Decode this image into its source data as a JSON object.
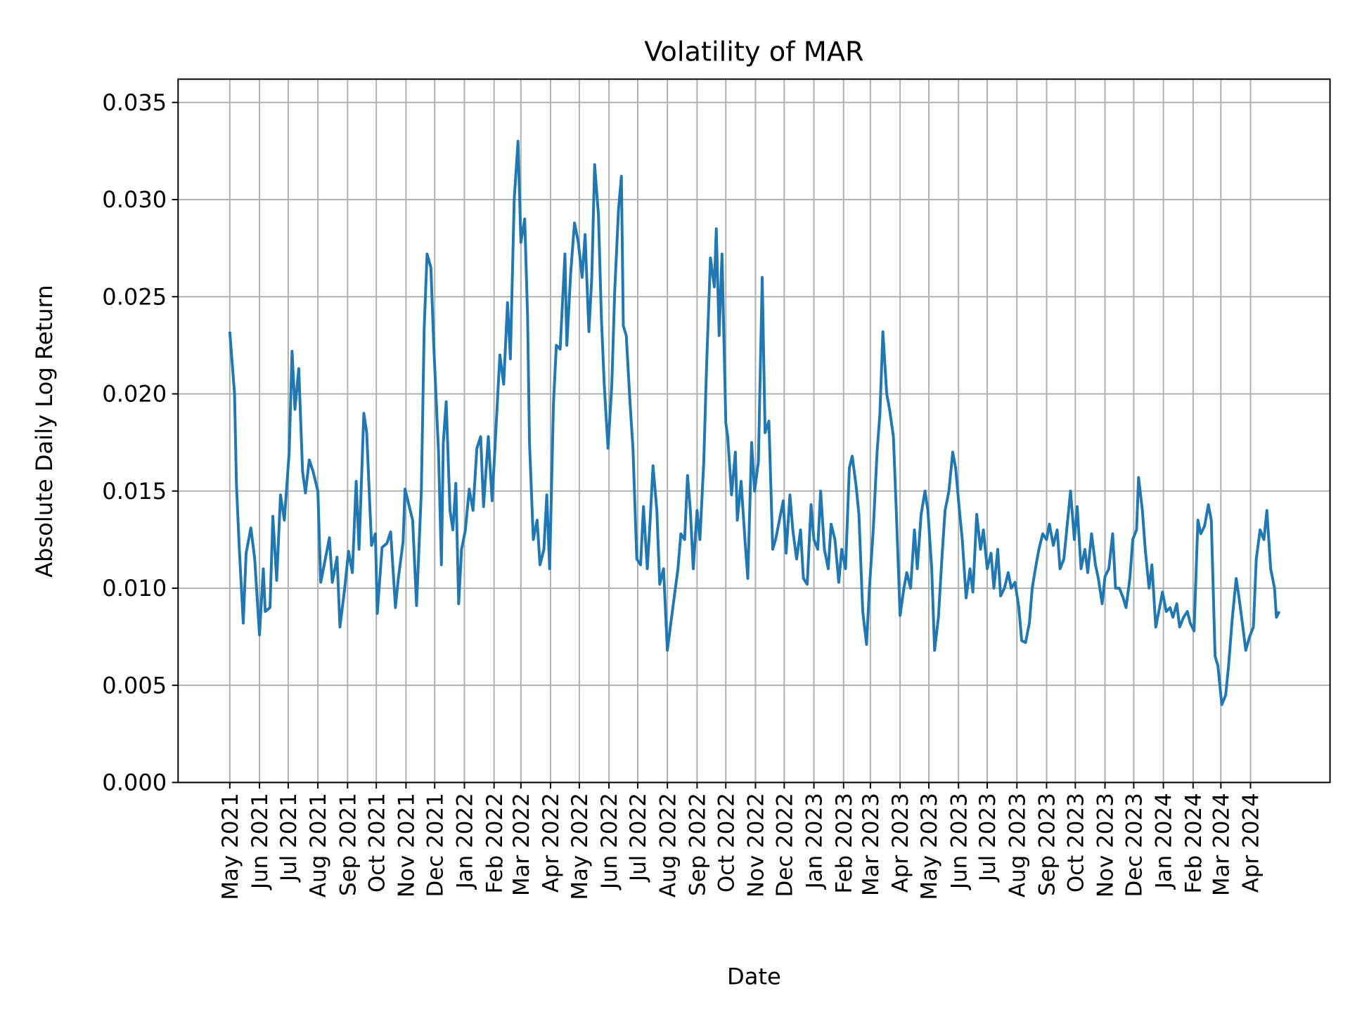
{
  "chart_data": {
    "type": "line",
    "title": "Volatility of MAR",
    "xlabel": "Date",
    "ylabel": "Absolute Daily Log Return",
    "xlim": [
      "2021-03-08",
      "2024-06-23"
    ],
    "ylim": [
      0,
      0.0362
    ],
    "grid": true,
    "line_color": "#1f77b4",
    "grid_color": "#b0b0b0",
    "yticks": [
      "0.000",
      "0.005",
      "0.010",
      "0.015",
      "0.020",
      "0.025",
      "0.030",
      "0.035"
    ],
    "ytick_values": [
      0,
      0.005,
      0.01,
      0.015,
      0.02,
      0.025,
      0.03,
      0.035
    ],
    "xticks": [
      "May 2021",
      "Jun 2021",
      "Jul 2021",
      "Aug 2021",
      "Sep 2021",
      "Oct 2021",
      "Nov 2021",
      "Dec 2021",
      "Jan 2022",
      "Feb 2022",
      "Mar 2022",
      "Apr 2022",
      "May 2022",
      "Jun 2022",
      "Jul 2022",
      "Aug 2022",
      "Sep 2022",
      "Oct 2022",
      "Nov 2022",
      "Dec 2022",
      "Jan 2023",
      "Feb 2023",
      "Mar 2023",
      "Apr 2023",
      "May 2023",
      "Jun 2023",
      "Jul 2023",
      "Aug 2023",
      "Sep 2023",
      "Oct 2023",
      "Nov 2023",
      "Dec 2023",
      "Jan 2024",
      "Feb 2024",
      "Mar 2024",
      "Apr 2024"
    ],
    "xtick_dates": [
      "2021-05-01",
      "2021-06-01",
      "2021-07-01",
      "2021-08-01",
      "2021-09-01",
      "2021-10-01",
      "2021-11-01",
      "2021-12-01",
      "2022-01-01",
      "2022-02-01",
      "2022-03-01",
      "2022-04-01",
      "2022-05-01",
      "2022-06-01",
      "2022-07-01",
      "2022-08-01",
      "2022-09-01",
      "2022-10-01",
      "2022-11-01",
      "2022-12-01",
      "2023-01-01",
      "2023-02-01",
      "2023-03-01",
      "2023-04-01",
      "2023-05-01",
      "2023-06-01",
      "2023-07-01",
      "2023-08-01",
      "2023-09-01",
      "2023-10-01",
      "2023-11-01",
      "2023-12-01",
      "2024-01-01",
      "2024-02-01",
      "2024-03-01",
      "2024-04-01"
    ],
    "series": [
      {
        "x": [
          "2021-05-01",
          "2021-05-06",
          "2021-05-08",
          "2021-05-11",
          "2021-05-15",
          "2021-05-18",
          "2021-05-23",
          "2021-05-27",
          "2021-06-01",
          "2021-06-05",
          "2021-06-07",
          "2021-06-12",
          "2021-06-15",
          "2021-06-19",
          "2021-06-23",
          "2021-06-27",
          "2021-07-02",
          "2021-07-05",
          "2021-07-08",
          "2021-07-12",
          "2021-07-16",
          "2021-07-19",
          "2021-07-23",
          "2021-07-27",
          "2021-08-01",
          "2021-08-04",
          "2021-08-08",
          "2021-08-13",
          "2021-08-16",
          "2021-08-21",
          "2021-08-24",
          "2021-08-29",
          "2021-09-02",
          "2021-09-06",
          "2021-09-10",
          "2021-09-13",
          "2021-09-18",
          "2021-09-21",
          "2021-09-26",
          "2021-09-30",
          "2021-10-02",
          "2021-10-07",
          "2021-10-12",
          "2021-10-16",
          "2021-10-21",
          "2021-10-24",
          "2021-10-29",
          "2021-10-31",
          "2021-11-04",
          "2021-11-08",
          "2021-11-12",
          "2021-11-17",
          "2021-11-20",
          "2021-11-23",
          "2021-11-27",
          "2021-11-30",
          "2021-12-05",
          "2021-12-08",
          "2021-12-10",
          "2021-12-13",
          "2021-12-17",
          "2021-12-20",
          "2021-12-23",
          "2021-12-26",
          "2021-12-29",
          "2022-01-02",
          "2022-01-06",
          "2022-01-10",
          "2022-01-14",
          "2022-01-18",
          "2022-01-21",
          "2022-01-26",
          "2022-01-30",
          "2022-02-03",
          "2022-02-07",
          "2022-02-11",
          "2022-02-15",
          "2022-02-18",
          "2022-02-22",
          "2022-02-26",
          "2022-03-01",
          "2022-03-05",
          "2022-03-08",
          "2022-03-10",
          "2022-03-14",
          "2022-03-18",
          "2022-03-21",
          "2022-03-25",
          "2022-03-28",
          "2022-03-31",
          "2022-04-04",
          "2022-04-07",
          "2022-04-11",
          "2022-04-16",
          "2022-04-18",
          "2022-04-22",
          "2022-04-26",
          "2022-04-30",
          "2022-05-04",
          "2022-05-07",
          "2022-05-11",
          "2022-05-14",
          "2022-05-17",
          "2022-05-21",
          "2022-05-24",
          "2022-05-27",
          "2022-05-31",
          "2022-06-04",
          "2022-06-07",
          "2022-06-11",
          "2022-06-14",
          "2022-06-16",
          "2022-06-19",
          "2022-06-23",
          "2022-06-26",
          "2022-06-30",
          "2022-07-04",
          "2022-07-07",
          "2022-07-11",
          "2022-07-14",
          "2022-07-17",
          "2022-07-21",
          "2022-07-24",
          "2022-07-28",
          "2022-08-01",
          "2022-08-04",
          "2022-08-08",
          "2022-08-12",
          "2022-08-15",
          "2022-08-19",
          "2022-08-22",
          "2022-08-25",
          "2022-08-28",
          "2022-09-01",
          "2022-09-04",
          "2022-09-08",
          "2022-09-11",
          "2022-09-15",
          "2022-09-19",
          "2022-09-21",
          "2022-09-24",
          "2022-09-27",
          "2022-10-01",
          "2022-10-03",
          "2022-10-07",
          "2022-10-11",
          "2022-10-13",
          "2022-10-17",
          "2022-10-21",
          "2022-10-24",
          "2022-10-28",
          "2022-10-31",
          "2022-11-04",
          "2022-11-08",
          "2022-11-11",
          "2022-11-15",
          "2022-11-19",
          "2022-11-22",
          "2022-11-26",
          "2022-11-30",
          "2022-12-03",
          "2022-12-07",
          "2022-12-10",
          "2022-12-14",
          "2022-12-18",
          "2022-12-21",
          "2022-12-25",
          "2022-12-29",
          "2023-01-01",
          "2023-01-05",
          "2023-01-08",
          "2023-01-12",
          "2023-01-16",
          "2023-01-19",
          "2023-01-23",
          "2023-01-27",
          "2023-01-30",
          "2023-02-03",
          "2023-02-07",
          "2023-02-10",
          "2023-02-14",
          "2023-02-17",
          "2023-02-21",
          "2023-02-25",
          "2023-02-28",
          "2023-03-04",
          "2023-03-08",
          "2023-03-11",
          "2023-03-14",
          "2023-03-18",
          "2023-03-21",
          "2023-03-25",
          "2023-03-28",
          "2023-04-01",
          "2023-04-05",
          "2023-04-08",
          "2023-04-12",
          "2023-04-16",
          "2023-04-19",
          "2023-04-23",
          "2023-04-27",
          "2023-04-30",
          "2023-05-04",
          "2023-05-07",
          "2023-05-11",
          "2023-05-15",
          "2023-05-18",
          "2023-05-22",
          "2023-05-26",
          "2023-05-29",
          "2023-06-02",
          "2023-06-05",
          "2023-06-09",
          "2023-06-13",
          "2023-06-16",
          "2023-06-20",
          "2023-06-24",
          "2023-06-27",
          "2023-07-01",
          "2023-07-05",
          "2023-07-08",
          "2023-07-12",
          "2023-07-15",
          "2023-07-19",
          "2023-07-23",
          "2023-07-26",
          "2023-07-30",
          "2023-08-03",
          "2023-08-06",
          "2023-08-10",
          "2023-08-14",
          "2023-08-17",
          "2023-08-21",
          "2023-08-24",
          "2023-08-28",
          "2023-09-01",
          "2023-09-04",
          "2023-09-08",
          "2023-09-12",
          "2023-09-15",
          "2023-09-19",
          "2023-09-22",
          "2023-09-26",
          "2023-09-30",
          "2023-10-03",
          "2023-10-07",
          "2023-10-11",
          "2023-10-14",
          "2023-10-18",
          "2023-10-22",
          "2023-10-25",
          "2023-10-29",
          "2023-11-01",
          "2023-11-05",
          "2023-11-09",
          "2023-11-12",
          "2023-11-16",
          "2023-11-20",
          "2023-11-23",
          "2023-11-27",
          "2023-11-30",
          "2023-12-04",
          "2023-12-06",
          "2023-12-10",
          "2023-12-13",
          "2023-12-17",
          "2023-12-20",
          "2023-12-24",
          "2023-12-28",
          "2023-12-31",
          "2024-01-04",
          "2024-01-08",
          "2024-01-11",
          "2024-01-15",
          "2024-01-18",
          "2024-01-22",
          "2024-01-26",
          "2024-01-29",
          "2024-02-02",
          "2024-02-06",
          "2024-02-09",
          "2024-02-13",
          "2024-02-17",
          "2024-02-20",
          "2024-02-24",
          "2024-02-27",
          "2024-03-02",
          "2024-03-06",
          "2024-03-09",
          "2024-03-13",
          "2024-03-17",
          "2024-03-20",
          "2024-03-24",
          "2024-03-27",
          "2024-03-31",
          "2024-04-04",
          "2024-04-07",
          "2024-04-11",
          "2024-04-15",
          "2024-04-18",
          "2024-04-22",
          "2024-04-26",
          "2024-04-28",
          "2024-05-01"
        ],
        "y": [
          0.0232,
          0.02,
          0.0153,
          0.012,
          0.0082,
          0.0118,
          0.0131,
          0.0115,
          0.0076,
          0.011,
          0.0088,
          0.009,
          0.0137,
          0.0104,
          0.0148,
          0.0135,
          0.017,
          0.0222,
          0.0192,
          0.0213,
          0.016,
          0.0149,
          0.0166,
          0.016,
          0.015,
          0.0103,
          0.0113,
          0.0126,
          0.0103,
          0.0116,
          0.008,
          0.01,
          0.0119,
          0.0108,
          0.0155,
          0.012,
          0.019,
          0.018,
          0.0122,
          0.0128,
          0.0087,
          0.0121,
          0.0123,
          0.0129,
          0.009,
          0.0105,
          0.0124,
          0.0151,
          0.0143,
          0.0135,
          0.0091,
          0.015,
          0.0234,
          0.0272,
          0.0265,
          0.0225,
          0.017,
          0.0112,
          0.0175,
          0.0196,
          0.014,
          0.013,
          0.0154,
          0.0092,
          0.012,
          0.013,
          0.0151,
          0.014,
          0.0172,
          0.0178,
          0.0142,
          0.0178,
          0.0145,
          0.0182,
          0.022,
          0.0205,
          0.0247,
          0.0218,
          0.03,
          0.033,
          0.0278,
          0.029,
          0.024,
          0.0175,
          0.0125,
          0.0135,
          0.0112,
          0.012,
          0.0148,
          0.011,
          0.0195,
          0.0225,
          0.0223,
          0.0272,
          0.0225,
          0.0262,
          0.0288,
          0.0278,
          0.026,
          0.0282,
          0.0232,
          0.026,
          0.0318,
          0.0292,
          0.024,
          0.0205,
          0.0172,
          0.0205,
          0.0253,
          0.0295,
          0.0312,
          0.0235,
          0.023,
          0.0195,
          0.0172,
          0.0115,
          0.0112,
          0.0142,
          0.011,
          0.0135,
          0.0163,
          0.014,
          0.0102,
          0.011,
          0.0068,
          0.008,
          0.0095,
          0.011,
          0.0128,
          0.0125,
          0.0158,
          0.014,
          0.011,
          0.014,
          0.0125,
          0.0165,
          0.0215,
          0.027,
          0.0255,
          0.0285,
          0.023,
          0.0272,
          0.0185,
          0.0178,
          0.0148,
          0.017,
          0.0135,
          0.0155,
          0.0125,
          0.0105,
          0.0175,
          0.015,
          0.0165,
          0.026,
          0.018,
          0.0186,
          0.012,
          0.0125,
          0.0135,
          0.0145,
          0.0118,
          0.0148,
          0.013,
          0.0115,
          0.013,
          0.0105,
          0.0102,
          0.0143,
          0.0125,
          0.012,
          0.015,
          0.012,
          0.011,
          0.0133,
          0.0125,
          0.0103,
          0.012,
          0.011,
          0.0162,
          0.0168,
          0.0153,
          0.0138,
          0.0088,
          0.0071,
          0.01,
          0.013,
          0.017,
          0.019,
          0.0232,
          0.02,
          0.0192,
          0.0178,
          0.014,
          0.0086,
          0.01,
          0.0108,
          0.01,
          0.013,
          0.011,
          0.0138,
          0.015,
          0.014,
          0.011,
          0.0068,
          0.0085,
          0.0118,
          0.014,
          0.015,
          0.017,
          0.0162,
          0.014,
          0.0125,
          0.0095,
          0.011,
          0.0098,
          0.0138,
          0.012,
          0.013,
          0.011,
          0.0118,
          0.01,
          0.012,
          0.0096,
          0.01,
          0.0108,
          0.01,
          0.0103,
          0.009,
          0.0073,
          0.0072,
          0.0082,
          0.01,
          0.0112,
          0.012,
          0.0128,
          0.0125,
          0.0133,
          0.0122,
          0.013,
          0.011,
          0.0115,
          0.013,
          0.015,
          0.0125,
          0.0142,
          0.011,
          0.012,
          0.0108,
          0.0128,
          0.0112,
          0.0105,
          0.0092,
          0.0106,
          0.011,
          0.0128,
          0.01,
          0.01,
          0.0095,
          0.009,
          0.0105,
          0.0125,
          0.013,
          0.0157,
          0.014,
          0.012,
          0.01,
          0.0112,
          0.008,
          0.009,
          0.0098,
          0.0088,
          0.009,
          0.0085,
          0.0092,
          0.008,
          0.0085,
          0.0088,
          0.0082,
          0.0078,
          0.0135,
          0.0128,
          0.0132,
          0.0143,
          0.0135,
          0.0065,
          0.006,
          0.004,
          0.0045,
          0.006,
          0.0085,
          0.0105,
          0.0095,
          0.008,
          0.0068,
          0.0075,
          0.008,
          0.0115,
          0.013,
          0.0125,
          0.014,
          0.011,
          0.01,
          0.0085,
          0.0088
        ]
      }
    ]
  }
}
